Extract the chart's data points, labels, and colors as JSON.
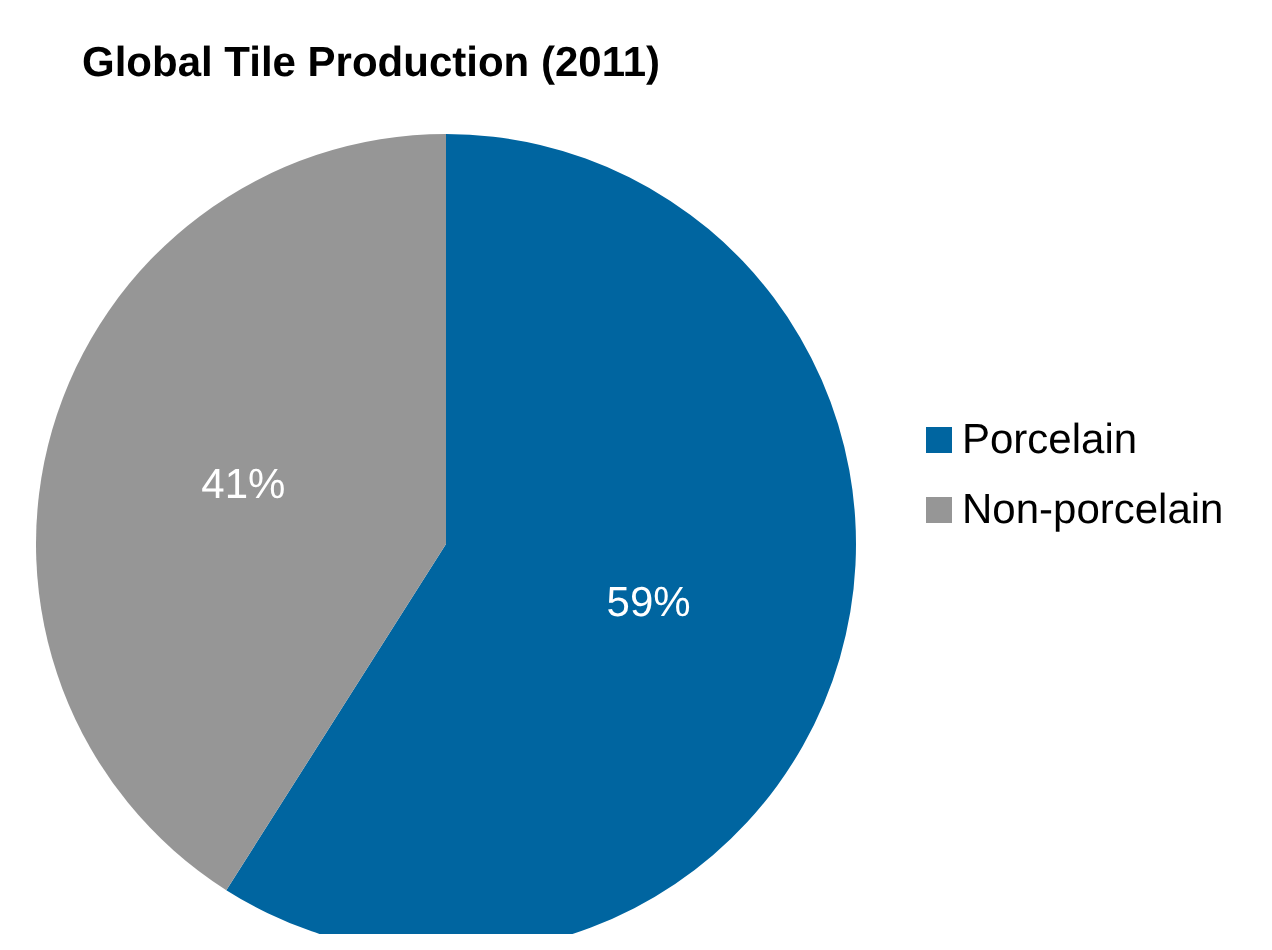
{
  "chart_data": {
    "type": "pie",
    "title": "Global Tile Production (2011)",
    "categories": [
      "Porcelain",
      "Non-porcelain"
    ],
    "values": [
      59,
      41
    ],
    "colors": [
      "#0065a0",
      "#969696"
    ],
    "value_labels": [
      "59%",
      "41%"
    ],
    "legend": "right"
  }
}
